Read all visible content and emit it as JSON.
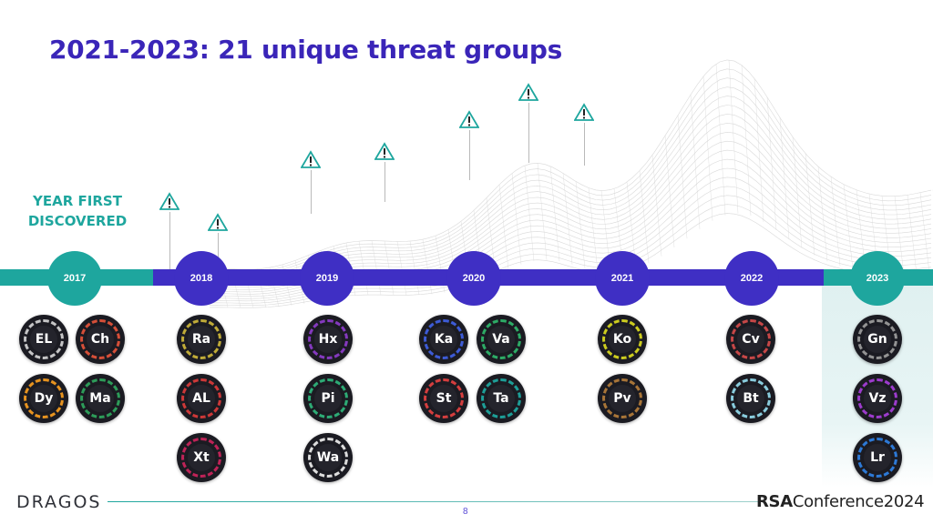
{
  "title": "2021-2023: 21 unique threat groups",
  "year_label": "YEAR FIRST DISCOVERED",
  "colors": {
    "teal": "#1ea69e",
    "indigo": "#3f2fc4",
    "title": "#3a25b8"
  },
  "years": [
    {
      "label": "2017",
      "style": "teal"
    },
    {
      "label": "2018",
      "style": "blue"
    },
    {
      "label": "2019",
      "style": "blue"
    },
    {
      "label": "2020",
      "style": "blue"
    },
    {
      "label": "2021",
      "style": "blue"
    },
    {
      "label": "2022",
      "style": "blue"
    },
    {
      "label": "2023",
      "style": "teal"
    }
  ],
  "threat_groups": [
    {
      "abbr": "EL",
      "ring": "#cfcfcf"
    },
    {
      "abbr": "Ch",
      "ring": "#e0523a"
    },
    {
      "abbr": "Dy",
      "ring": "#f29a1f"
    },
    {
      "abbr": "Ma",
      "ring": "#2fa35c"
    },
    {
      "abbr": "Ra",
      "ring": "#c9b33a"
    },
    {
      "abbr": "AL",
      "ring": "#d63a3a"
    },
    {
      "abbr": "Xt",
      "ring": "#c7245a"
    },
    {
      "abbr": "Hx",
      "ring": "#8a3bc7"
    },
    {
      "abbr": "Pi",
      "ring": "#2fb37a"
    },
    {
      "abbr": "Wa",
      "ring": "#e8e8e8"
    },
    {
      "abbr": "Ka",
      "ring": "#3f5fe0"
    },
    {
      "abbr": "Va",
      "ring": "#2fb36a"
    },
    {
      "abbr": "St",
      "ring": "#e04040"
    },
    {
      "abbr": "Ta",
      "ring": "#1ea69e"
    },
    {
      "abbr": "Ko",
      "ring": "#d6d61f"
    },
    {
      "abbr": "Pv",
      "ring": "#b07a3a"
    },
    {
      "abbr": "Cv",
      "ring": "#d04a4a"
    },
    {
      "abbr": "Bt",
      "ring": "#8fd6e8"
    },
    {
      "abbr": "Gn",
      "ring": "#9a9a9a"
    },
    {
      "abbr": "Vz",
      "ring": "#a33dd6"
    },
    {
      "abbr": "Lr",
      "ring": "#2f7fe0"
    }
  ],
  "warning_icon": "warning-triangle-icon",
  "page_number": "8",
  "footer": {
    "dragos": "DRAGOS",
    "rsa_bold": "RSA",
    "rsa_rest": "Conference",
    "rsa_year": "2024"
  }
}
